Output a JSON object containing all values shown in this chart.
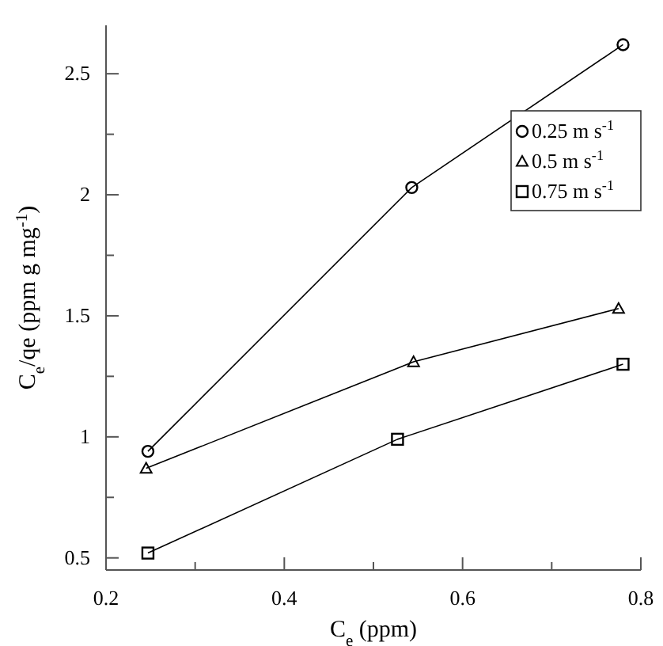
{
  "chart_data": {
    "type": "line",
    "xlabel": "C$_{e}$ (ppm)",
    "ylabel": "C$_{e}$/qe (ppm g mg$^{-1}$)",
    "xlim": [
      0.2,
      0.8
    ],
    "ylim": [
      0.45,
      2.7
    ],
    "xticks": [
      0.2,
      {
        "value": 0.3,
        "label": null
      },
      0.4,
      {
        "value": 0.5,
        "label": null
      },
      0.6,
      {
        "value": 0.7,
        "label": null
      },
      0.8
    ],
    "yticks": [
      0.5,
      {
        "value": 0.75,
        "label": null
      },
      1,
      {
        "value": 1.25,
        "label": null
      },
      1.5,
      {
        "value": 1.75,
        "label": null
      },
      2,
      {
        "value": 2.25,
        "label": null
      },
      2.5
    ],
    "grid": false,
    "legend": "top right",
    "line_style": "solid",
    "series": [
      {
        "name": "0.25 m s$^{-1}$",
        "color": "#000000",
        "marker": "circle",
        "x": [
          0.247,
          0.543,
          0.78
        ],
        "values": [
          0.94,
          2.03,
          2.62
        ]
      },
      {
        "name": "0.5 m s$^{-1}$",
        "color": "#000000",
        "marker": "triangle",
        "x": [
          0.245,
          0.545,
          0.775
        ],
        "values": [
          0.87,
          1.31,
          1.53
        ]
      },
      {
        "name": "0.75 m s$^{-1}$",
        "color": "#000000",
        "marker": "square",
        "x": [
          0.247,
          0.527,
          0.78
        ],
        "values": [
          0.52,
          0.99,
          1.3
        ]
      }
    ]
  }
}
